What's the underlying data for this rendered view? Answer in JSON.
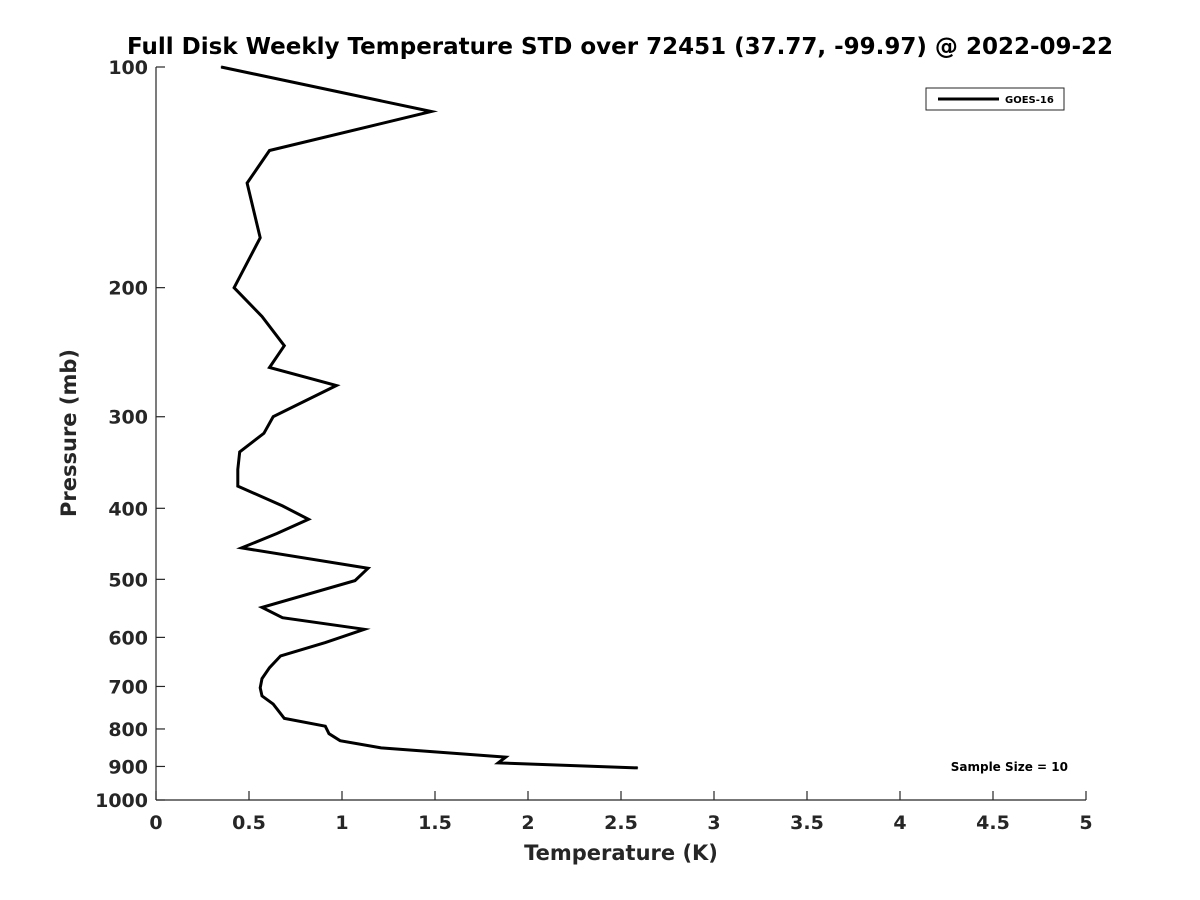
{
  "chart_data": {
    "type": "line",
    "title": "Full Disk Weekly Temperature STD over 72451 (37.77, -99.97) @ 2022-09-22",
    "xlabel": "Temperature (K)",
    "ylabel": "Pressure (mb)",
    "xlim": [
      0,
      5
    ],
    "ylim": [
      100,
      1000
    ],
    "y_scale": "log",
    "y_direction": "reversed",
    "grid": false,
    "legend_position": "top-right",
    "x_ticks": [
      {
        "value": 0,
        "label": "0"
      },
      {
        "value": 0.5,
        "label": "0.5"
      },
      {
        "value": 1,
        "label": "1"
      },
      {
        "value": 1.5,
        "label": "1.5"
      },
      {
        "value": 2,
        "label": "2"
      },
      {
        "value": 2.5,
        "label": "2.5"
      },
      {
        "value": 3,
        "label": "3"
      },
      {
        "value": 3.5,
        "label": "3.5"
      },
      {
        "value": 4,
        "label": "4"
      },
      {
        "value": 4.5,
        "label": "4.5"
      },
      {
        "value": 5,
        "label": "5"
      }
    ],
    "y_ticks": [
      {
        "value": 100,
        "label": "100"
      },
      {
        "value": 200,
        "label": "200"
      },
      {
        "value": 300,
        "label": "300"
      },
      {
        "value": 400,
        "label": "400"
      },
      {
        "value": 500,
        "label": "500"
      },
      {
        "value": 600,
        "label": "600"
      },
      {
        "value": 700,
        "label": "700"
      },
      {
        "value": 800,
        "label": "800"
      },
      {
        "value": 900,
        "label": "900"
      },
      {
        "value": 1000,
        "label": "1000"
      }
    ],
    "series": [
      {
        "name": "GOES-16",
        "color": "#000000",
        "points": [
          {
            "x": 0.35,
            "y": 100
          },
          {
            "x": 1.48,
            "y": 115
          },
          {
            "x": 0.61,
            "y": 130
          },
          {
            "x": 0.49,
            "y": 144
          },
          {
            "x": 0.56,
            "y": 171
          },
          {
            "x": 0.42,
            "y": 200
          },
          {
            "x": 0.57,
            "y": 219
          },
          {
            "x": 0.69,
            "y": 240
          },
          {
            "x": 0.61,
            "y": 257
          },
          {
            "x": 0.97,
            "y": 272
          },
          {
            "x": 0.63,
            "y": 300
          },
          {
            "x": 0.58,
            "y": 316
          },
          {
            "x": 0.45,
            "y": 335
          },
          {
            "x": 0.44,
            "y": 354
          },
          {
            "x": 0.44,
            "y": 373
          },
          {
            "x": 0.68,
            "y": 397
          },
          {
            "x": 0.82,
            "y": 414
          },
          {
            "x": 0.65,
            "y": 433
          },
          {
            "x": 0.46,
            "y": 453
          },
          {
            "x": 1.14,
            "y": 483
          },
          {
            "x": 1.07,
            "y": 502
          },
          {
            "x": 0.57,
            "y": 546
          },
          {
            "x": 0.68,
            "y": 564
          },
          {
            "x": 1.12,
            "y": 585
          },
          {
            "x": 0.91,
            "y": 610
          },
          {
            "x": 0.67,
            "y": 636
          },
          {
            "x": 0.61,
            "y": 660
          },
          {
            "x": 0.57,
            "y": 683
          },
          {
            "x": 0.56,
            "y": 703
          },
          {
            "x": 0.57,
            "y": 721
          },
          {
            "x": 0.63,
            "y": 740
          },
          {
            "x": 0.69,
            "y": 774
          },
          {
            "x": 0.91,
            "y": 793
          },
          {
            "x": 0.93,
            "y": 812
          },
          {
            "x": 0.99,
            "y": 830
          },
          {
            "x": 1.21,
            "y": 849
          },
          {
            "x": 1.88,
            "y": 874
          },
          {
            "x": 1.84,
            "y": 890
          },
          {
            "x": 2.59,
            "y": 904
          }
        ]
      }
    ],
    "annotations": [
      {
        "text": "Sample Size = 10",
        "position": "bottom-right"
      }
    ]
  }
}
